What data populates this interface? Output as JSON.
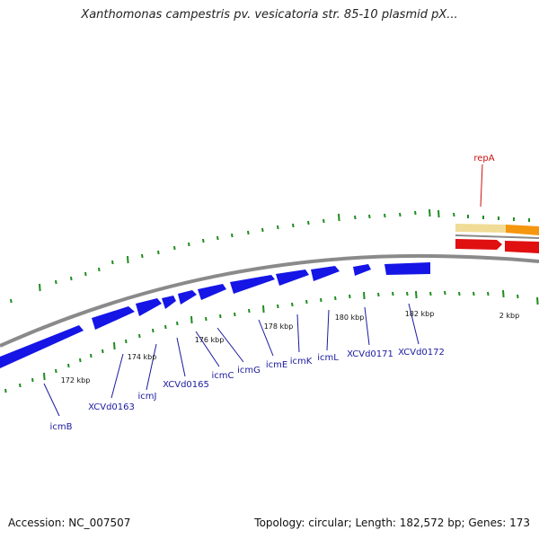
{
  "title": "Xanthomonas campestris pv. vesicatoria str. 85-10 plasmid pX...",
  "footer": {
    "accession": "Accession: NC_007507",
    "summary": "Topology: circular; Length: 182,572 bp; Genes: 173"
  },
  "colors": {
    "backbone": "#8a8a8a",
    "forward_gene": "#1515e6",
    "reverse_gene": "#e01010",
    "rep_band": "#f0dc96",
    "rep_band2": "#f5960f",
    "tick": "#1e8c1e",
    "gene_label": "#1a1aa0",
    "rep_label": "#cc1010"
  },
  "tick_labels": [
    "172 kbp",
    "174 kbp",
    "176 kbp",
    "178 kbp",
    "180 kbp",
    "182 kbp",
    "2 kbp"
  ],
  "gene_labels": [
    "icmB",
    "XCVd0163",
    "icmJ",
    "XCVd0165",
    "icmC",
    "icmG",
    "icmE",
    "icmK",
    "icmL",
    "XCVd0171",
    "XCVd0172"
  ],
  "rep_label": "repA"
}
